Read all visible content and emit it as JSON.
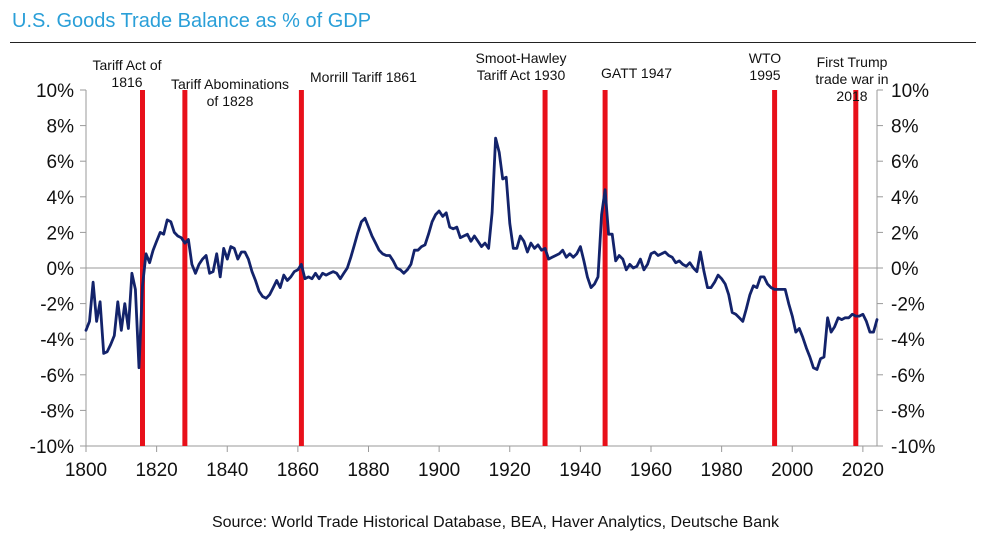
{
  "title": "U.S. Goods Trade Balance as % of GDP",
  "source": "Source: World Trade Historical Database, BEA, Haver Analytics, Deutsche Bank",
  "chart_data": {
    "type": "line",
    "xlim": [
      1800,
      2024
    ],
    "ylim": [
      -10,
      10
    ],
    "x_ticks": [
      1800,
      1820,
      1840,
      1860,
      1880,
      1900,
      1920,
      1940,
      1960,
      1980,
      2000,
      2020
    ],
    "y_ticks": [
      {
        "v": 10,
        "label": "10%"
      },
      {
        "v": 8,
        "label": "8%"
      },
      {
        "v": 6,
        "label": "6%"
      },
      {
        "v": 4,
        "label": "4%"
      },
      {
        "v": 2,
        "label": "2%"
      },
      {
        "v": 0,
        "label": "0%"
      },
      {
        "v": -2,
        "label": "-2%"
      },
      {
        "v": -4,
        "label": "-4%"
      },
      {
        "v": -6,
        "label": "-6%"
      },
      {
        "v": -8,
        "label": "-8%"
      },
      {
        "v": -10,
        "label": "-10%"
      }
    ],
    "grid": false,
    "series_color": "#13236b",
    "event_color": "#e8101a",
    "events": [
      {
        "year": 1816,
        "label_lines": [
          "Tariff Act of",
          "1816"
        ]
      },
      {
        "year": 1828,
        "label_lines": [
          "Tariff Abominations",
          "of 1828"
        ]
      },
      {
        "year": 1861,
        "label_lines": [
          "Morrill Tariff 1861"
        ]
      },
      {
        "year": 1930,
        "label_lines": [
          "Smoot-Hawley",
          "Tariff Act 1930"
        ]
      },
      {
        "year": 1947,
        "label_lines": [
          "GATT 1947"
        ]
      },
      {
        "year": 1995,
        "label_lines": [
          "WTO",
          "1995"
        ]
      },
      {
        "year": 2018,
        "label_lines": [
          "First Trump",
          "trade war in",
          "2018"
        ]
      }
    ],
    "series": [
      {
        "x": [
          1800,
          1801,
          1802,
          1803,
          1804,
          1805,
          1806,
          1807,
          1808,
          1809,
          1810,
          1811,
          1812,
          1813,
          1814,
          1815,
          1816,
          1817,
          1818,
          1819,
          1820,
          1821,
          1822,
          1823,
          1824,
          1825,
          1826,
          1827,
          1828,
          1829,
          1830,
          1831,
          1832,
          1833,
          1834,
          1835,
          1836,
          1837,
          1838,
          1839,
          1840,
          1841,
          1842,
          1843,
          1844,
          1845,
          1846,
          1847,
          1848,
          1849,
          1850,
          1851,
          1852,
          1853,
          1854,
          1855,
          1856,
          1857,
          1858,
          1859,
          1860,
          1861,
          1862,
          1863,
          1864,
          1865,
          1866,
          1867,
          1868,
          1869,
          1870,
          1871,
          1872,
          1873,
          1874,
          1875,
          1876,
          1877,
          1878,
          1879,
          1880,
          1881,
          1882,
          1883,
          1884,
          1885,
          1886,
          1887,
          1888,
          1889,
          1890,
          1891,
          1892,
          1893,
          1894,
          1895,
          1896,
          1897,
          1898,
          1899,
          1900,
          1901,
          1902,
          1903,
          1904,
          1905,
          1906,
          1907,
          1908,
          1909,
          1910,
          1911,
          1912,
          1913,
          1914,
          1915,
          1916,
          1917,
          1918,
          1919,
          1920,
          1921,
          1922,
          1923,
          1924,
          1925,
          1926,
          1927,
          1928,
          1929,
          1930,
          1931,
          1932,
          1933,
          1934,
          1935,
          1936,
          1937,
          1938,
          1939,
          1940,
          1941,
          1942,
          1943,
          1944,
          1945,
          1946,
          1947,
          1948,
          1949,
          1950,
          1951,
          1952,
          1953,
          1954,
          1955,
          1956,
          1957,
          1958,
          1959,
          1960,
          1961,
          1962,
          1963,
          1964,
          1965,
          1966,
          1967,
          1968,
          1969,
          1970,
          1971,
          1972,
          1973,
          1974,
          1975,
          1976,
          1977,
          1978,
          1979,
          1980,
          1981,
          1982,
          1983,
          1984,
          1985,
          1986,
          1987,
          1988,
          1989,
          1990,
          1991,
          1992,
          1993,
          1994,
          1995,
          1996,
          1997,
          1998,
          1999,
          2000,
          2001,
          2002,
          2003,
          2004,
          2005,
          2006,
          2007,
          2008,
          2009,
          2010,
          2011,
          2012,
          2013,
          2014,
          2015,
          2016,
          2017,
          2018,
          2019,
          2020,
          2021,
          2022,
          2023,
          2024
        ],
        "y": [
          -3.5,
          -3.0,
          -0.8,
          -3.0,
          -1.9,
          -4.8,
          -4.7,
          -4.3,
          -3.8,
          -1.9,
          -3.5,
          -2.0,
          -3.4,
          -0.3,
          -1.2,
          -5.6,
          -1.0,
          0.8,
          0.3,
          1.0,
          1.5,
          2.0,
          1.9,
          2.7,
          2.6,
          2.0,
          1.8,
          1.7,
          1.4,
          1.6,
          0.2,
          -0.3,
          0.2,
          0.5,
          0.7,
          -0.3,
          -0.2,
          0.8,
          -0.5,
          1.1,
          0.5,
          1.2,
          1.1,
          0.5,
          0.9,
          0.9,
          0.5,
          -0.2,
          -0.7,
          -1.3,
          -1.6,
          -1.7,
          -1.5,
          -1.1,
          -0.7,
          -1.1,
          -0.4,
          -0.7,
          -0.5,
          -0.2,
          -0.1,
          0.2,
          -0.6,
          -0.5,
          -0.6,
          -0.3,
          -0.6,
          -0.3,
          -0.4,
          -0.3,
          -0.2,
          -0.3,
          -0.6,
          -0.3,
          0.0,
          0.6,
          1.3,
          2.0,
          2.6,
          2.8,
          2.3,
          1.8,
          1.4,
          1.0,
          0.8,
          0.7,
          0.7,
          0.4,
          0.0,
          -0.1,
          -0.3,
          -0.1,
          0.2,
          1.0,
          1.0,
          1.2,
          1.3,
          1.9,
          2.6,
          3.0,
          3.2,
          2.9,
          3.1,
          2.3,
          2.2,
          2.3,
          1.7,
          1.8,
          1.9,
          1.5,
          1.8,
          1.5,
          1.2,
          1.4,
          1.1,
          3.1,
          7.3,
          6.5,
          5.0,
          5.1,
          2.5,
          1.1,
          1.1,
          1.8,
          1.5,
          0.9,
          1.4,
          1.1,
          1.3,
          1.0,
          1.1,
          0.5,
          0.6,
          0.7,
          0.8,
          1.0,
          0.6,
          0.8,
          0.6,
          0.8,
          1.2,
          0.4,
          -0.5,
          -1.1,
          -0.9,
          -0.5,
          3.0,
          4.4,
          1.9,
          1.9,
          0.4,
          0.7,
          0.5,
          -0.1,
          0.2,
          0.0,
          0.1,
          0.5,
          -0.1,
          0.2,
          0.8,
          0.9,
          0.7,
          0.8,
          0.9,
          0.7,
          0.6,
          0.3,
          0.4,
          0.2,
          0.1,
          0.3,
          0.0,
          -0.2,
          0.9,
          -0.2,
          -1.1,
          -1.1,
          -0.8,
          -0.4,
          -0.6,
          -0.9,
          -1.5,
          -2.5,
          -2.6,
          -2.8,
          -3.0,
          -2.3,
          -1.5,
          -1.0,
          -1.1,
          -0.5,
          -0.5,
          -0.9,
          -1.1,
          -1.2,
          -1.2,
          -1.2,
          -1.2,
          -2.0,
          -2.7,
          -3.6,
          -3.4,
          -3.9,
          -4.5,
          -5.0,
          -5.6,
          -5.7,
          -5.1,
          -5.0,
          -2.8,
          -3.6,
          -3.3,
          -2.8,
          -2.9,
          -2.8,
          -2.8,
          -2.6,
          -2.7,
          -2.7,
          -2.6,
          -3.0,
          -3.6,
          -3.6,
          -2.9
        ]
      }
    ]
  }
}
